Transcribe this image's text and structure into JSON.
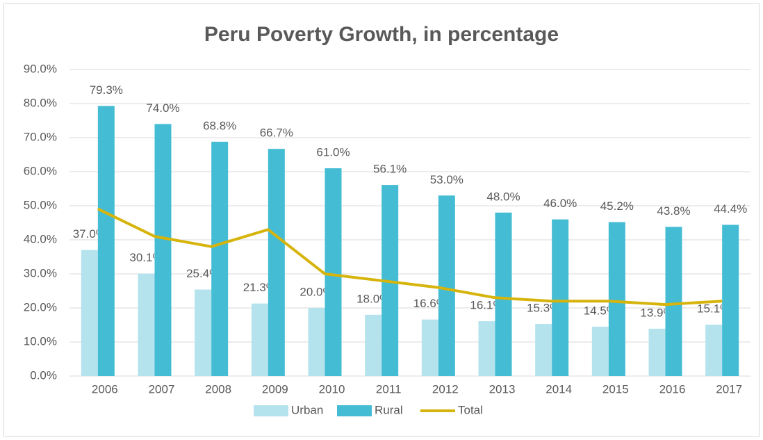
{
  "chart_data": {
    "type": "bar-line",
    "title": "Peru Poverty Growth, in percentage",
    "categories": [
      "2006",
      "2007",
      "2008",
      "2009",
      "2010",
      "2011",
      "2012",
      "2013",
      "2014",
      "2015",
      "2016",
      "2017"
    ],
    "series": [
      {
        "name": "Urban",
        "type": "bar",
        "color": "#b4e3ed",
        "values": [
          37.0,
          30.1,
          25.4,
          21.3,
          20.0,
          18.0,
          16.6,
          16.1,
          15.3,
          14.5,
          13.9,
          15.1
        ],
        "value_labels": [
          "37.0%",
          "30.1%",
          "25.4%",
          "21.3%",
          "20.0%",
          "18.0%",
          "16.6%",
          "16.1%",
          "15.3%",
          "14.5%",
          "13.9%",
          "15.1%"
        ]
      },
      {
        "name": "Rural",
        "type": "bar",
        "color": "#44bcd3",
        "values": [
          79.3,
          74.0,
          68.8,
          66.7,
          61.0,
          56.1,
          53.0,
          48.0,
          46.0,
          45.2,
          43.8,
          44.4
        ],
        "value_labels": [
          "79.3%",
          "74.0%",
          "68.8%",
          "66.7%",
          "61.0%",
          "56.1%",
          "53.0%",
          "48.0%",
          "46.0%",
          "45.2%",
          "43.8%",
          "44.4%"
        ]
      },
      {
        "name": "Total",
        "type": "line",
        "color": "#d6b40c",
        "values": [
          49.1,
          41.0,
          38.0,
          43.0,
          30.0,
          28.0,
          26.0,
          23.0,
          22.0,
          22.0,
          21.0,
          22.0
        ]
      }
    ],
    "ylim": [
      0,
      90
    ],
    "yticks": [
      {
        "value": 0,
        "label": "0.0%"
      },
      {
        "value": 10,
        "label": "10.0%"
      },
      {
        "value": 20,
        "label": "20.0%"
      },
      {
        "value": 30,
        "label": "30.0%"
      },
      {
        "value": 40,
        "label": "40.0%"
      },
      {
        "value": 50,
        "label": "50.0%"
      },
      {
        "value": 60,
        "label": "60.0%"
      },
      {
        "value": 70,
        "label": "70.0%"
      },
      {
        "value": 80,
        "label": "80.0%"
      },
      {
        "value": 90,
        "label": "90.0%"
      }
    ],
    "grid": true,
    "legend": "bottom"
  }
}
